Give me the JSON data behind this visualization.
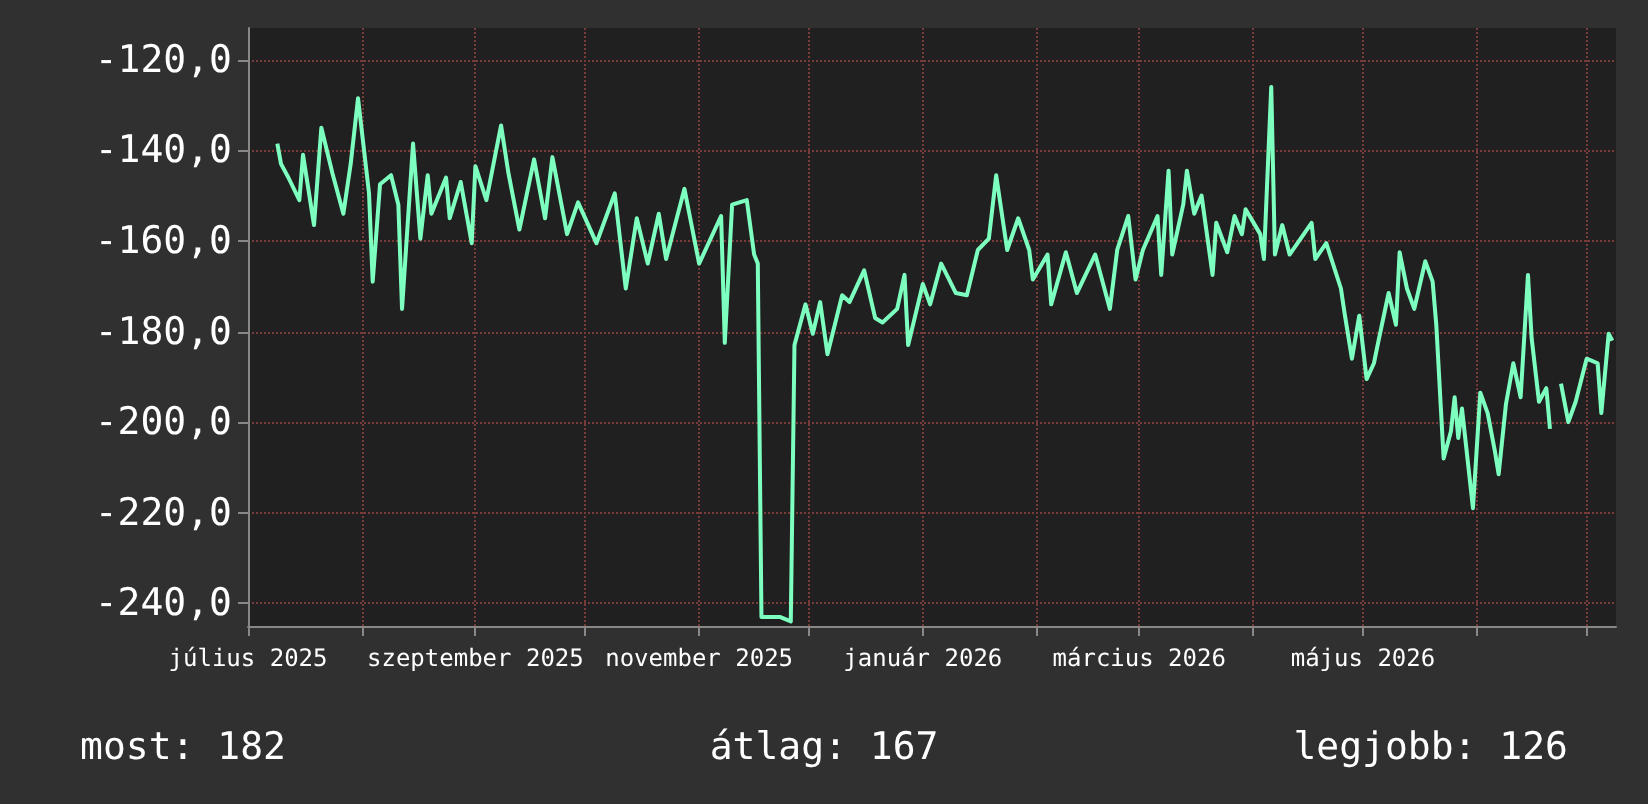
{
  "chart_data": {
    "type": "line",
    "x": [
      "2025-07-09",
      "2025-07-10",
      "2025-07-12",
      "2025-07-15",
      "2025-07-16",
      "2025-07-19",
      "2025-07-21",
      "2025-07-24",
      "2025-07-27",
      "2025-07-29",
      "2025-07-31",
      "2025-08-03",
      "2025-08-04",
      "2025-08-06",
      "2025-08-09",
      "2025-08-11",
      "2025-08-12",
      "2025-08-15",
      "2025-08-17",
      "2025-08-19",
      "2025-08-20",
      "2025-08-24",
      "2025-08-25",
      "2025-08-28",
      "2025-08-31",
      "2025-09-01",
      "2025-09-04",
      "2025-09-08",
      "2025-09-10",
      "2025-09-13",
      "2025-09-17",
      "2025-09-20",
      "2025-09-22",
      "2025-09-26",
      "2025-09-29",
      "2025-10-04",
      "2025-10-09",
      "2025-10-12",
      "2025-10-15",
      "2025-10-18",
      "2025-10-21",
      "2025-10-23",
      "2025-10-28",
      "2025-11-01",
      "2025-11-07",
      "2025-11-08",
      "2025-11-10",
      "2025-11-14",
      "2025-11-16",
      "2025-11-17",
      "2025-11-18",
      "2025-11-23",
      "2025-11-26",
      "2025-11-27",
      "2025-11-30",
      "2025-12-02",
      "2025-12-04",
      "2025-12-06",
      "2025-12-10",
      "2025-12-12",
      "2025-12-16",
      "2025-12-19",
      "2025-12-21",
      "2025-12-25",
      "2025-12-27",
      "2025-12-28",
      "2026-01-01",
      "2026-01-03",
      "2026-01-06",
      "2026-01-10",
      "2026-01-13",
      "2026-01-16",
      "2026-01-19",
      "2026-01-21",
      "2026-01-24",
      "2026-01-27",
      "2026-01-30",
      "2026-01-31",
      "2026-02-04",
      "2026-02-05",
      "2026-02-09",
      "2026-02-12",
      "2026-02-17",
      "2026-02-21",
      "2026-02-23",
      "2026-02-26",
      "2026-02-28",
      "2026-03-02",
      "2026-03-06",
      "2026-03-07",
      "2026-03-09",
      "2026-03-10",
      "2026-03-13",
      "2026-03-14",
      "2026-03-16",
      "2026-03-18",
      "2026-03-21",
      "2026-03-22",
      "2026-03-25",
      "2026-03-27",
      "2026-03-29",
      "2026-03-30",
      "2026-04-03",
      "2026-04-04",
      "2026-04-06",
      "2026-04-07",
      "2026-04-09",
      "2026-04-11",
      "2026-04-17",
      "2026-04-18",
      "2026-04-21",
      "2026-04-25",
      "2026-04-26",
      "2026-04-28",
      "2026-04-30",
      "2026-05-02",
      "2026-05-04",
      "2026-05-05",
      "2026-05-08",
      "2026-05-10",
      "2026-05-11",
      "2026-05-13",
      "2026-05-15",
      "2026-05-18",
      "2026-05-20",
      "2026-05-21",
      "2026-05-23",
      "2026-05-25",
      "2026-05-26",
      "2026-05-27",
      "2026-05-28",
      "2026-05-31",
      "2026-06-02",
      "2026-06-04",
      "2026-06-06",
      "2026-06-07",
      "2026-06-09",
      "2026-06-11",
      "2026-06-13",
      "2026-06-15",
      "2026-06-16",
      "2026-06-18",
      "2026-06-20",
      "2026-06-21",
      "2026-06-22",
      "2026-06-24",
      "2026-06-26",
      "2026-06-28",
      "2026-07-01",
      "2026-07-04",
      "2026-07-05",
      "2026-07-07",
      "2026-07-08"
    ],
    "series": [
      {
        "color": "#7dffbf",
        "values": [
          -138.5,
          -143,
          -146,
          -151,
          -141,
          -156.5,
          -135,
          -145,
          -154,
          -143,
          -128.5,
          -149.5,
          -169,
          -147.5,
          -145.5,
          -152,
          -175,
          -138.5,
          -159.5,
          -145.5,
          -154,
          -146,
          -155,
          -147,
          -160.5,
          -143.5,
          -151,
          -134.5,
          -145,
          -157.5,
          -142,
          -155,
          -141.5,
          -158.5,
          -151.5,
          -160.5,
          -149.5,
          -170.5,
          -155,
          -165,
          -154,
          -164,
          -148.5,
          -165,
          -154.5,
          -182.5,
          -152,
          -151,
          -163,
          -165,
          -243,
          -243,
          -244,
          -183,
          -174,
          -180.5,
          -173.5,
          -185,
          -172,
          -173.5,
          -166.5,
          -177,
          -178,
          -175,
          -167.5,
          -183,
          -169.5,
          -174,
          -165,
          -171.5,
          -172,
          -162,
          -159.5,
          -145.5,
          -162,
          -155,
          -162,
          -168.5,
          -163,
          -174,
          -162.5,
          -171.5,
          -163,
          -175,
          -162,
          -154.5,
          -168.5,
          -162,
          -154.5,
          -167.5,
          -144.5,
          -163,
          -152,
          -144.5,
          -154,
          -150,
          -167.5,
          -156,
          -162.5,
          -154.5,
          -158.5,
          -153,
          -158.5,
          -164,
          -126,
          -163,
          -156.5,
          -163,
          -156,
          -164,
          -160.5,
          -170.5,
          -176,
          -186,
          -176.5,
          -190.5,
          -187,
          -183,
          -171.5,
          -178.5,
          -162.5,
          -170.5,
          -175,
          -164.5,
          -169,
          -178.5,
          -208,
          -202,
          -194.5,
          -203.5,
          -197,
          -219,
          -193.5,
          -198,
          -206.5,
          -211.5,
          -196,
          -187,
          -194.5,
          -167.5,
          -181.5,
          -195.5,
          -192.5,
          -201.5,
          null,
          -191.5,
          -200,
          -195.5,
          -186,
          -187,
          -198,
          -180.5,
          -182
        ]
      }
    ],
    "xlim": [
      "2025-07-01",
      "2026-07-09"
    ],
    "xticks": [
      {
        "value": "2025-07-01",
        "label": "július 2025"
      },
      {
        "value": "2025-08-01",
        "label": null
      },
      {
        "value": "2025-09-01",
        "label": "szeptember 2025"
      },
      {
        "value": "2025-10-01",
        "label": null
      },
      {
        "value": "2025-11-01",
        "label": "november 2025"
      },
      {
        "value": "2025-12-01",
        "label": null
      },
      {
        "value": "2026-01-01",
        "label": "január 2026"
      },
      {
        "value": "2026-02-01",
        "label": null
      },
      {
        "value": "2026-03-01",
        "label": "március 2026"
      },
      {
        "value": "2026-04-01",
        "label": null
      },
      {
        "value": "2026-05-01",
        "label": "május 2026"
      },
      {
        "value": "2026-06-01",
        "label": null
      },
      {
        "value": "2026-07-01",
        "label": null
      }
    ],
    "ylim": [
      -245,
      -113
    ],
    "yticks": [
      {
        "value": -120,
        "label": "-120,0"
      },
      {
        "value": -140,
        "label": "-140,0"
      },
      {
        "value": -160,
        "label": "-160,0"
      },
      {
        "value": -180,
        "label": "-180,0"
      },
      {
        "value": -200,
        "label": "-200,0"
      },
      {
        "value": -220,
        "label": "-220,0"
      },
      {
        "value": -240,
        "label": "-240,0"
      }
    ],
    "grid": true,
    "annotations": [
      "most: 182",
      "átlag: 167",
      "legjobb: 126"
    ]
  }
}
